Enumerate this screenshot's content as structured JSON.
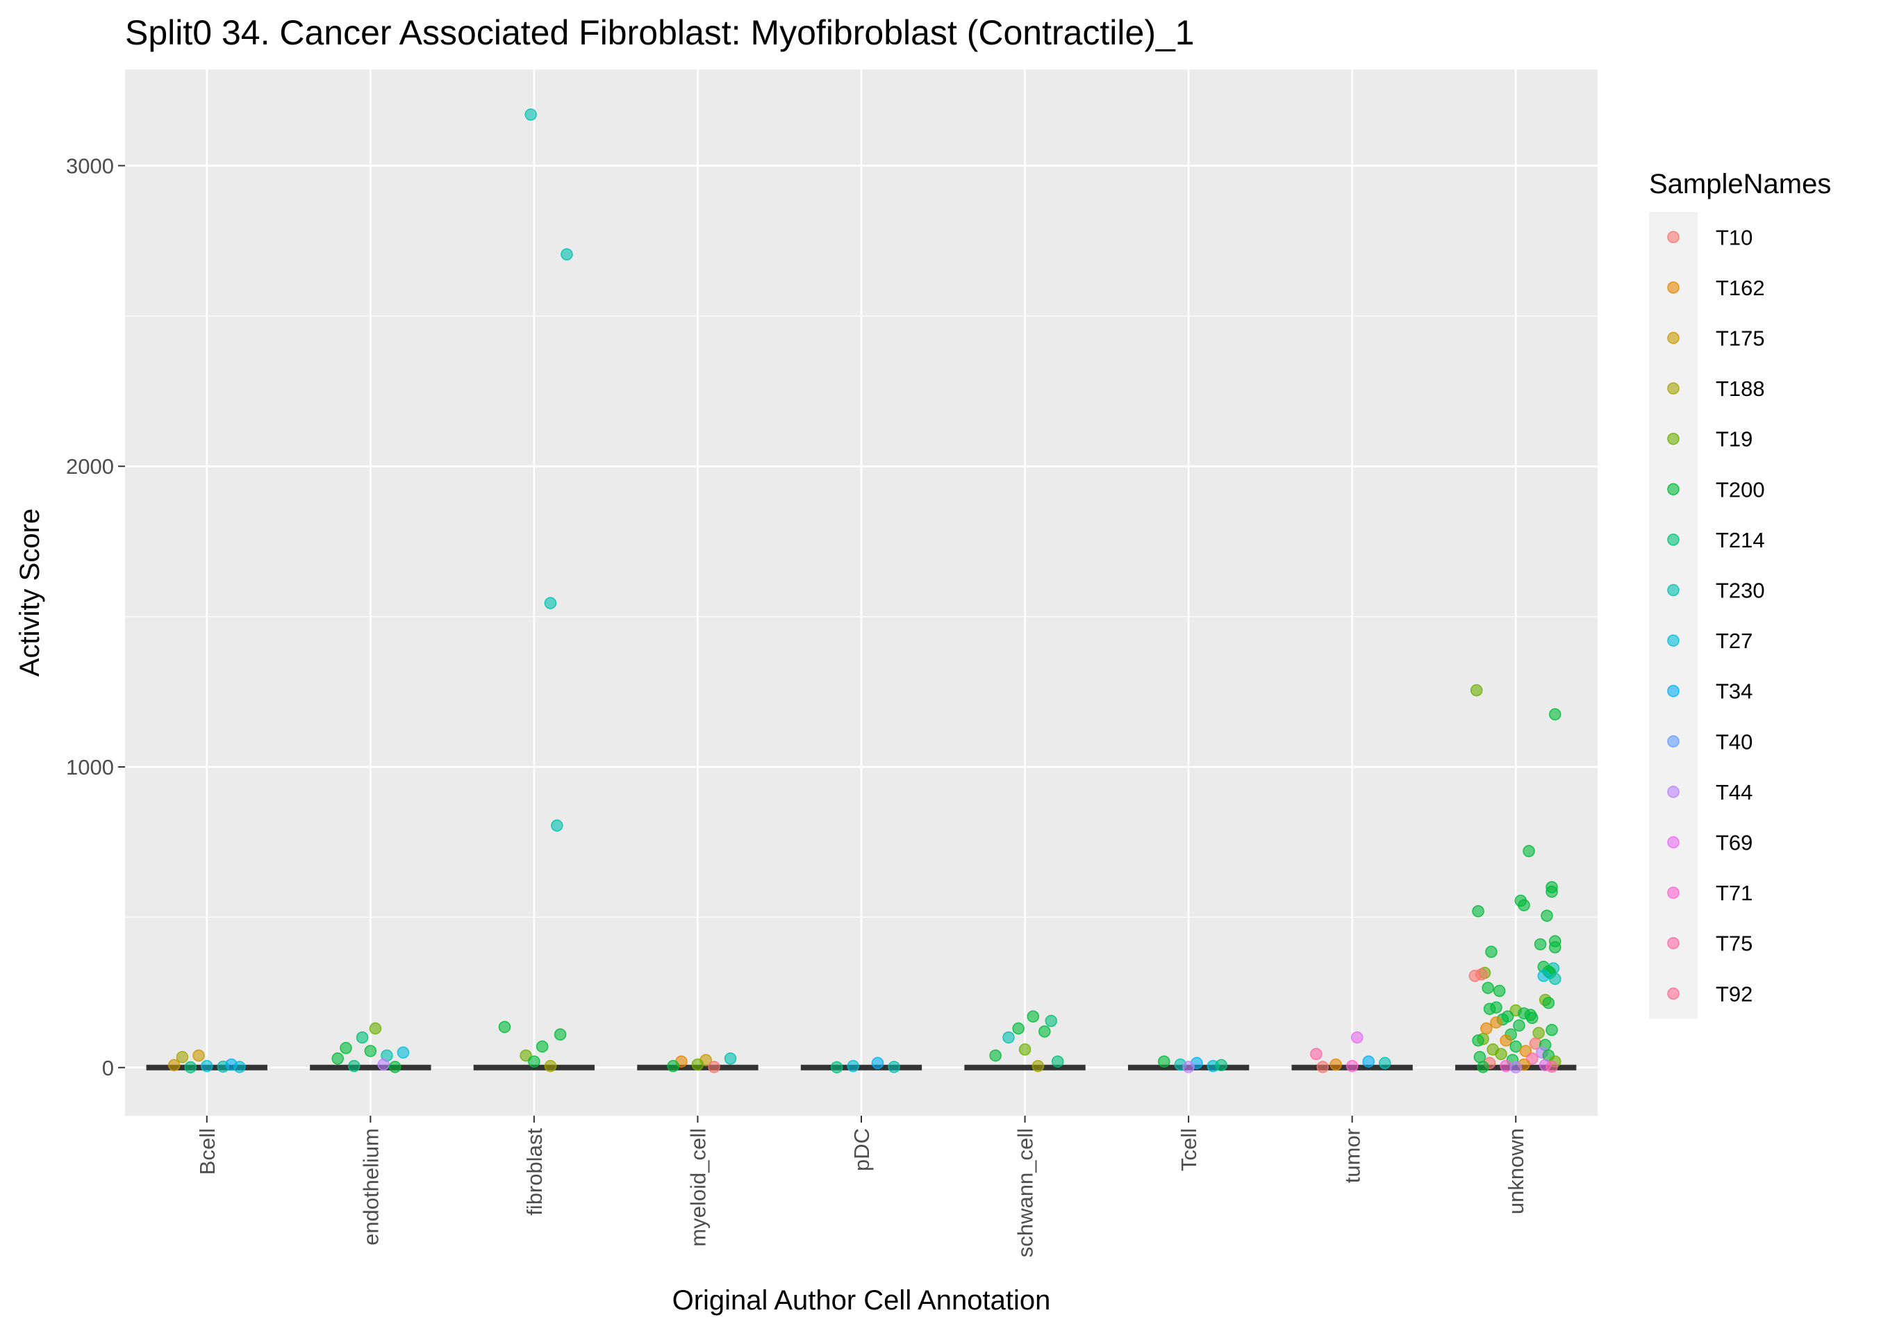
{
  "chart_data": {
    "type": "scatter",
    "title": "Split0 34. Cancer Associated Fibroblast: Myofibroblast (Contractile)_1",
    "xlabel": "Original Author Cell Annotation",
    "ylabel": "Activity Score",
    "categories": [
      "Bcell",
      "endothelium",
      "fibroblast",
      "myeloid_cell",
      "pDC",
      "schwann_cell",
      "Tcell",
      "tumor",
      "unknown"
    ],
    "y_ticks": [
      {
        "value": 0,
        "label": "0"
      },
      {
        "value": 1000,
        "label": "1000"
      },
      {
        "value": 2000,
        "label": "2000"
      },
      {
        "value": 3000,
        "label": "3000"
      }
    ],
    "ylim": [
      -160,
      3320
    ],
    "grid": true,
    "legend": {
      "title": "SampleNames",
      "position": "right",
      "entries": [
        {
          "label": "T10",
          "color": "#F8766D"
        },
        {
          "label": "T162",
          "color": "#E58700"
        },
        {
          "label": "T175",
          "color": "#C99800"
        },
        {
          "label": "T188",
          "color": "#A3A500"
        },
        {
          "label": "T19",
          "color": "#6BB100"
        },
        {
          "label": "T200",
          "color": "#00BA38"
        },
        {
          "label": "T214",
          "color": "#00BF7D"
        },
        {
          "label": "T230",
          "color": "#00C0AF"
        },
        {
          "label": "T27",
          "color": "#00BCD8"
        },
        {
          "label": "T34",
          "color": "#00B0F6"
        },
        {
          "label": "T40",
          "color": "#619CFF"
        },
        {
          "label": "T44",
          "color": "#B983FF"
        },
        {
          "label": "T69",
          "color": "#E76BF3"
        },
        {
          "label": "T71",
          "color": "#FD61D1"
        },
        {
          "label": "T75",
          "color": "#FF67A4"
        },
        {
          "label": "T92",
          "color": "#FF6C91"
        }
      ]
    },
    "series": [
      {
        "category": "Bcell",
        "points": [
          {
            "offset": -0.15,
            "y": 35,
            "sample": "T188"
          },
          {
            "offset": -0.2,
            "y": 8,
            "sample": "T175"
          },
          {
            "offset": -0.05,
            "y": 40,
            "sample": "T175"
          },
          {
            "offset": 0.0,
            "y": 5,
            "sample": "T27"
          },
          {
            "offset": 0.1,
            "y": 3,
            "sample": "T230"
          },
          {
            "offset": 0.15,
            "y": 10,
            "sample": "T34"
          },
          {
            "offset": 0.2,
            "y": 2,
            "sample": "T27"
          },
          {
            "offset": -0.1,
            "y": 1,
            "sample": "T214"
          }
        ]
      },
      {
        "category": "endothelium",
        "points": [
          {
            "offset": -0.15,
            "y": 65,
            "sample": "T200"
          },
          {
            "offset": -0.05,
            "y": 100,
            "sample": "T214"
          },
          {
            "offset": 0.03,
            "y": 130,
            "sample": "T19"
          },
          {
            "offset": 0.0,
            "y": 55,
            "sample": "T200"
          },
          {
            "offset": 0.1,
            "y": 40,
            "sample": "T230"
          },
          {
            "offset": 0.2,
            "y": 50,
            "sample": "T27"
          },
          {
            "offset": -0.2,
            "y": 30,
            "sample": "T200"
          },
          {
            "offset": 0.08,
            "y": 10,
            "sample": "T44"
          },
          {
            "offset": -0.1,
            "y": 5,
            "sample": "T214"
          },
          {
            "offset": 0.15,
            "y": 2,
            "sample": "T200"
          }
        ]
      },
      {
        "category": "fibroblast",
        "points": [
          {
            "offset": -0.02,
            "y": 3170,
            "sample": "T230"
          },
          {
            "offset": 0.2,
            "y": 2705,
            "sample": "T230"
          },
          {
            "offset": 0.1,
            "y": 1545,
            "sample": "T230"
          },
          {
            "offset": 0.14,
            "y": 805,
            "sample": "T230"
          },
          {
            "offset": -0.18,
            "y": 135,
            "sample": "T200"
          },
          {
            "offset": 0.16,
            "y": 110,
            "sample": "T200"
          },
          {
            "offset": 0.05,
            "y": 70,
            "sample": "T200"
          },
          {
            "offset": -0.05,
            "y": 40,
            "sample": "T19"
          },
          {
            "offset": 0.0,
            "y": 20,
            "sample": "T200"
          },
          {
            "offset": 0.1,
            "y": 5,
            "sample": "T188"
          }
        ]
      },
      {
        "category": "myeloid_cell",
        "points": [
          {
            "offset": -0.1,
            "y": 20,
            "sample": "T162"
          },
          {
            "offset": 0.05,
            "y": 25,
            "sample": "T175"
          },
          {
            "offset": 0.2,
            "y": 30,
            "sample": "T230"
          },
          {
            "offset": 0.0,
            "y": 10,
            "sample": "T19"
          },
          {
            "offset": -0.15,
            "y": 5,
            "sample": "T200"
          },
          {
            "offset": 0.1,
            "y": 2,
            "sample": "T10"
          }
        ]
      },
      {
        "category": "pDC",
        "points": [
          {
            "offset": 0.1,
            "y": 15,
            "sample": "T34"
          },
          {
            "offset": -0.05,
            "y": 5,
            "sample": "T27"
          },
          {
            "offset": 0.2,
            "y": 2,
            "sample": "T230"
          },
          {
            "offset": -0.15,
            "y": 1,
            "sample": "T214"
          }
        ]
      },
      {
        "category": "schwann_cell",
        "points": [
          {
            "offset": 0.05,
            "y": 170,
            "sample": "T200"
          },
          {
            "offset": 0.16,
            "y": 155,
            "sample": "T214"
          },
          {
            "offset": -0.04,
            "y": 130,
            "sample": "T200"
          },
          {
            "offset": -0.1,
            "y": 100,
            "sample": "T230"
          },
          {
            "offset": 0.12,
            "y": 120,
            "sample": "T200"
          },
          {
            "offset": 0.0,
            "y": 60,
            "sample": "T19"
          },
          {
            "offset": -0.18,
            "y": 40,
            "sample": "T200"
          },
          {
            "offset": 0.2,
            "y": 20,
            "sample": "T214"
          },
          {
            "offset": 0.08,
            "y": 5,
            "sample": "T188"
          }
        ]
      },
      {
        "category": "Tcell",
        "points": [
          {
            "offset": -0.15,
            "y": 20,
            "sample": "T200"
          },
          {
            "offset": -0.05,
            "y": 10,
            "sample": "T230"
          },
          {
            "offset": 0.05,
            "y": 15,
            "sample": "T34"
          },
          {
            "offset": 0.15,
            "y": 5,
            "sample": "T27"
          },
          {
            "offset": 0.0,
            "y": 2,
            "sample": "T44"
          },
          {
            "offset": 0.2,
            "y": 8,
            "sample": "T214"
          }
        ]
      },
      {
        "category": "tumor",
        "points": [
          {
            "offset": -0.22,
            "y": 45,
            "sample": "T75"
          },
          {
            "offset": 0.03,
            "y": 100,
            "sample": "T69"
          },
          {
            "offset": 0.1,
            "y": 20,
            "sample": "T34"
          },
          {
            "offset": -0.1,
            "y": 10,
            "sample": "T162"
          },
          {
            "offset": 0.2,
            "y": 15,
            "sample": "T230"
          },
          {
            "offset": 0.0,
            "y": 5,
            "sample": "T71"
          },
          {
            "offset": -0.18,
            "y": 2,
            "sample": "T10"
          }
        ]
      },
      {
        "category": "unknown",
        "points": [
          {
            "offset": -0.24,
            "y": 1255,
            "sample": "T19"
          },
          {
            "offset": 0.24,
            "y": 1175,
            "sample": "T200"
          },
          {
            "offset": 0.08,
            "y": 720,
            "sample": "T200"
          },
          {
            "offset": 0.22,
            "y": 600,
            "sample": "T200"
          },
          {
            "offset": 0.22,
            "y": 585,
            "sample": "T200"
          },
          {
            "offset": 0.03,
            "y": 555,
            "sample": "T200"
          },
          {
            "offset": 0.05,
            "y": 540,
            "sample": "T200"
          },
          {
            "offset": -0.23,
            "y": 520,
            "sample": "T200"
          },
          {
            "offset": 0.19,
            "y": 505,
            "sample": "T200"
          },
          {
            "offset": 0.24,
            "y": 420,
            "sample": "T200"
          },
          {
            "offset": 0.15,
            "y": 410,
            "sample": "T200"
          },
          {
            "offset": 0.24,
            "y": 400,
            "sample": "T200"
          },
          {
            "offset": -0.15,
            "y": 385,
            "sample": "T200"
          },
          {
            "offset": 0.17,
            "y": 335,
            "sample": "T200"
          },
          {
            "offset": 0.23,
            "y": 330,
            "sample": "T230"
          },
          {
            "offset": 0.2,
            "y": 320,
            "sample": "T200"
          },
          {
            "offset": 0.21,
            "y": 315,
            "sample": "T200"
          },
          {
            "offset": -0.19,
            "y": 315,
            "sample": "T19"
          },
          {
            "offset": 0.17,
            "y": 305,
            "sample": "T27"
          },
          {
            "offset": -0.25,
            "y": 305,
            "sample": "T10"
          },
          {
            "offset": -0.21,
            "y": 310,
            "sample": "T10"
          },
          {
            "offset": 0.24,
            "y": 295,
            "sample": "T230"
          },
          {
            "offset": -0.17,
            "y": 265,
            "sample": "T200"
          },
          {
            "offset": -0.1,
            "y": 255,
            "sample": "T200"
          },
          {
            "offset": 0.18,
            "y": 225,
            "sample": "T19"
          },
          {
            "offset": 0.2,
            "y": 215,
            "sample": "T200"
          },
          {
            "offset": -0.12,
            "y": 200,
            "sample": "T200"
          },
          {
            "offset": -0.16,
            "y": 195,
            "sample": "T200"
          },
          {
            "offset": 0.0,
            "y": 190,
            "sample": "T19"
          },
          {
            "offset": 0.05,
            "y": 180,
            "sample": "T200"
          },
          {
            "offset": 0.09,
            "y": 175,
            "sample": "T200"
          },
          {
            "offset": -0.05,
            "y": 170,
            "sample": "T200"
          },
          {
            "offset": 0.1,
            "y": 165,
            "sample": "T200"
          },
          {
            "offset": -0.08,
            "y": 160,
            "sample": "T200"
          },
          {
            "offset": -0.12,
            "y": 150,
            "sample": "T162"
          },
          {
            "offset": 0.02,
            "y": 140,
            "sample": "T200"
          },
          {
            "offset": -0.18,
            "y": 130,
            "sample": "T162"
          },
          {
            "offset": 0.22,
            "y": 125,
            "sample": "T200"
          },
          {
            "offset": 0.14,
            "y": 115,
            "sample": "T19"
          },
          {
            "offset": -0.03,
            "y": 110,
            "sample": "T200"
          },
          {
            "offset": -0.2,
            "y": 95,
            "sample": "T19"
          },
          {
            "offset": -0.06,
            "y": 90,
            "sample": "T162"
          },
          {
            "offset": -0.23,
            "y": 90,
            "sample": "T200"
          },
          {
            "offset": 0.12,
            "y": 80,
            "sample": "T10"
          },
          {
            "offset": 0.18,
            "y": 75,
            "sample": "T200"
          },
          {
            "offset": 0.0,
            "y": 70,
            "sample": "T200"
          },
          {
            "offset": -0.14,
            "y": 60,
            "sample": "T19"
          },
          {
            "offset": 0.06,
            "y": 55,
            "sample": "T162"
          },
          {
            "offset": 0.16,
            "y": 50,
            "sample": "T44"
          },
          {
            "offset": -0.09,
            "y": 45,
            "sample": "T19"
          },
          {
            "offset": 0.2,
            "y": 40,
            "sample": "T200"
          },
          {
            "offset": -0.22,
            "y": 35,
            "sample": "T200"
          },
          {
            "offset": 0.1,
            "y": 30,
            "sample": "T75"
          },
          {
            "offset": -0.02,
            "y": 25,
            "sample": "T200"
          },
          {
            "offset": 0.24,
            "y": 20,
            "sample": "T19"
          },
          {
            "offset": -0.16,
            "y": 15,
            "sample": "T10"
          },
          {
            "offset": 0.05,
            "y": 10,
            "sample": "T162"
          },
          {
            "offset": 0.18,
            "y": 8,
            "sample": "T69"
          },
          {
            "offset": -0.06,
            "y": 5,
            "sample": "T71"
          },
          {
            "offset": 0.22,
            "y": 3,
            "sample": "T75"
          },
          {
            "offset": -0.2,
            "y": 2,
            "sample": "T200"
          },
          {
            "offset": 0.0,
            "y": 1,
            "sample": "T44"
          }
        ]
      }
    ]
  }
}
